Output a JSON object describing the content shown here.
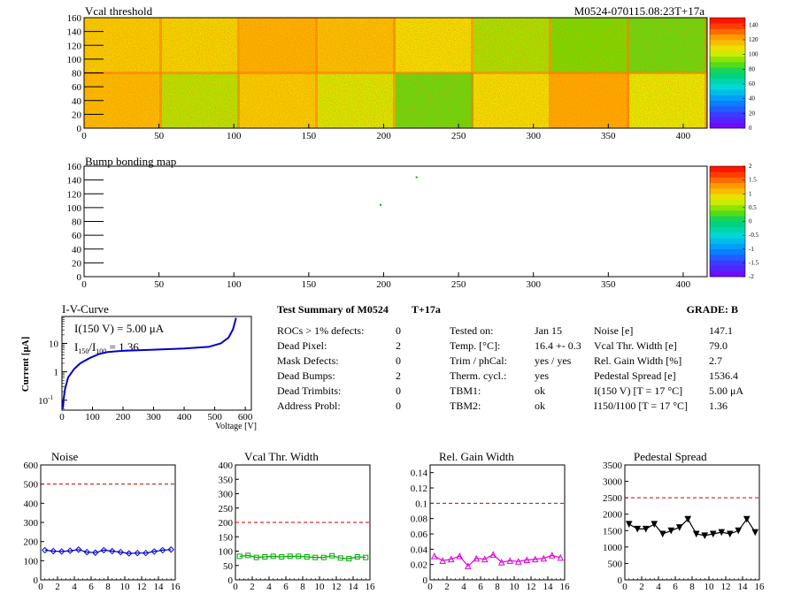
{
  "header": {
    "vcal_title": "Vcal threshold",
    "module_id": "M0524-070115.08:23T+17a",
    "bump_title": "Bump bonding map"
  },
  "maps": {
    "x_ticks": [
      "0",
      "50",
      "100",
      "150",
      "200",
      "250",
      "300",
      "350",
      "400"
    ],
    "y_ticks": [
      "0",
      "20",
      "40",
      "60",
      "80",
      "100",
      "120",
      "140",
      "160"
    ],
    "xlim": [
      0,
      416
    ],
    "ylim": [
      0,
      160
    ],
    "vcal_scale_ticks": [
      "0",
      "20",
      "40",
      "60",
      "80",
      "100",
      "120",
      "140"
    ],
    "bump_scale_ticks": [
      "2",
      "1.5",
      "1",
      "0.5",
      "0",
      "-0.5",
      "-1",
      "-1.5",
      "-2"
    ],
    "roc_levels_top": [
      112,
      110,
      118,
      115,
      108,
      96,
      90,
      88
    ],
    "roc_levels_bottom": [
      116,
      98,
      112,
      102,
      88,
      108,
      120,
      104
    ],
    "bump_dots": [
      {
        "x": 222,
        "y": 144
      },
      {
        "x": 198,
        "y": 104
      }
    ]
  },
  "iv": {
    "title": "I-V-Curve",
    "ylabel": "Current [μA]",
    "xlabel": "Voltage [V]",
    "annot1": "I(150 V) = 5.00 μA",
    "annot2_pre": "I",
    "annot2_sub1": "150",
    "annot2_mid": "/I",
    "annot2_sub2": "100",
    "annot2_post": " = 1.36",
    "x_ticks": [
      "0",
      "100",
      "200",
      "300",
      "400",
      "500",
      "600"
    ],
    "y_ticks": [
      "10",
      "1",
      "10"
    ],
    "y_tick_exp": "-1"
  },
  "summary": {
    "title": "Test Summary of M0524",
    "tag": "T+17a",
    "grade": "GRADE:  B",
    "left_rows": [
      {
        "label": "ROCs > 1% defects:",
        "value": "0"
      },
      {
        "label": "Dead Pixel:",
        "value": "2"
      },
      {
        "label": "Mask Defects:",
        "value": "0"
      },
      {
        "label": "Dead Bumps:",
        "value": "2"
      },
      {
        "label": "Dead Trimbits:",
        "value": "0"
      },
      {
        "label": "Address Probl:",
        "value": "0"
      }
    ],
    "mid_rows": [
      {
        "label": "Tested on:",
        "value": "Jan 15"
      },
      {
        "label": "Temp. [°C]:",
        "value": "16.4 +- 0.3"
      },
      {
        "label": "Trim / phCal:",
        "value": "yes / yes"
      },
      {
        "label": "Therm. cycl.:",
        "value": "yes"
      },
      {
        "label": "TBM1:",
        "value": "ok"
      },
      {
        "label": "TBM2:",
        "value": "ok"
      }
    ],
    "right_rows": [
      {
        "label": "Noise [e]",
        "value": "147.1"
      },
      {
        "label": "Vcal Thr. Width [e]",
        "value": "79.0"
      },
      {
        "label": "Rel. Gain Width [%]",
        "value": "2.7"
      },
      {
        "label": "Pedestal Spread [e]",
        "value": "1536.4"
      },
      {
        "label": "I(150 V) [T = 17 °C]",
        "value": "5.00 μA"
      },
      {
        "label": "I150/I100 [T = 17 °C]",
        "value": "1.36"
      }
    ]
  },
  "chart_data": [
    {
      "type": "line",
      "title": "Noise",
      "x": [
        0,
        1,
        2,
        3,
        4,
        5,
        6,
        7,
        8,
        9,
        10,
        11,
        12,
        13,
        14,
        15
      ],
      "series": [
        {
          "values": [
            155,
            150,
            148,
            152,
            158,
            145,
            142,
            155,
            150,
            145,
            138,
            140,
            140,
            148,
            155,
            158
          ]
        }
      ],
      "xlim": [
        0,
        16
      ],
      "ylim": [
        0,
        600
      ],
      "threshold": 500,
      "x_ticks": [
        "0",
        "2",
        "4",
        "6",
        "8",
        "10",
        "12",
        "14",
        "16"
      ],
      "y_ticks": [
        "0",
        "100",
        "200",
        "300",
        "400",
        "500",
        "600"
      ],
      "color": "#0000cc",
      "marker": "diamond"
    },
    {
      "type": "line",
      "title": "Vcal Thr. Width",
      "x": [
        0,
        1,
        2,
        3,
        4,
        5,
        6,
        7,
        8,
        9,
        10,
        11,
        12,
        13,
        14,
        15
      ],
      "series": [
        {
          "values": [
            82,
            85,
            78,
            80,
            82,
            80,
            82,
            82,
            80,
            78,
            78,
            84,
            76,
            74,
            80,
            78
          ]
        }
      ],
      "xlim": [
        0,
        16
      ],
      "ylim": [
        0,
        400
      ],
      "threshold": 200,
      "x_ticks": [
        "0",
        "2",
        "4",
        "6",
        "8",
        "10",
        "12",
        "14",
        "16"
      ],
      "y_ticks": [
        "0",
        "50",
        "100",
        "150",
        "200",
        "250",
        "300",
        "350",
        "400"
      ],
      "color": "#00aa00",
      "marker": "square"
    },
    {
      "type": "line",
      "title": "Rel. Gain Width",
      "x": [
        0,
        1,
        2,
        3,
        4,
        5,
        6,
        7,
        8,
        9,
        10,
        11,
        12,
        13,
        14,
        15
      ],
      "series": [
        {
          "values": [
            0.031,
            0.025,
            0.027,
            0.031,
            0.018,
            0.028,
            0.027,
            0.033,
            0.023,
            0.025,
            0.024,
            0.026,
            0.027,
            0.028,
            0.032,
            0.029
          ]
        }
      ],
      "xlim": [
        0,
        16
      ],
      "ylim": [
        0,
        0.15
      ],
      "threshold": 0.1,
      "x_ticks": [
        "0",
        "2",
        "4",
        "6",
        "8",
        "10",
        "12",
        "14",
        "16"
      ],
      "y_ticks": [
        "0",
        "0.02",
        "0.04",
        "0.06",
        "0.08",
        "0.1",
        "0.12",
        "0.14"
      ],
      "color": "#dd00dd",
      "marker": "triangle"
    },
    {
      "type": "line",
      "title": "Pedestal Spread",
      "x": [
        0,
        1,
        2,
        3,
        4,
        5,
        6,
        7,
        8,
        9,
        10,
        11,
        12,
        13,
        14,
        15
      ],
      "series": [
        {
          "values": [
            1700,
            1550,
            1550,
            1700,
            1400,
            1500,
            1600,
            1850,
            1400,
            1350,
            1400,
            1450,
            1400,
            1500,
            1850,
            1450
          ]
        }
      ],
      "xlim": [
        0,
        16
      ],
      "ylim": [
        0,
        3500
      ],
      "threshold": 2500,
      "x_ticks": [
        "0",
        "2",
        "4",
        "6",
        "8",
        "10",
        "12",
        "14",
        "16"
      ],
      "y_ticks": [
        "0",
        "500",
        "1000",
        "1500",
        "2000",
        "2500",
        "3000",
        "3500"
      ],
      "color": "#000000",
      "marker": "triangle-down"
    }
  ],
  "colors": {
    "threshold_line": "#cc0000",
    "iv_curve": "#0000cc"
  }
}
